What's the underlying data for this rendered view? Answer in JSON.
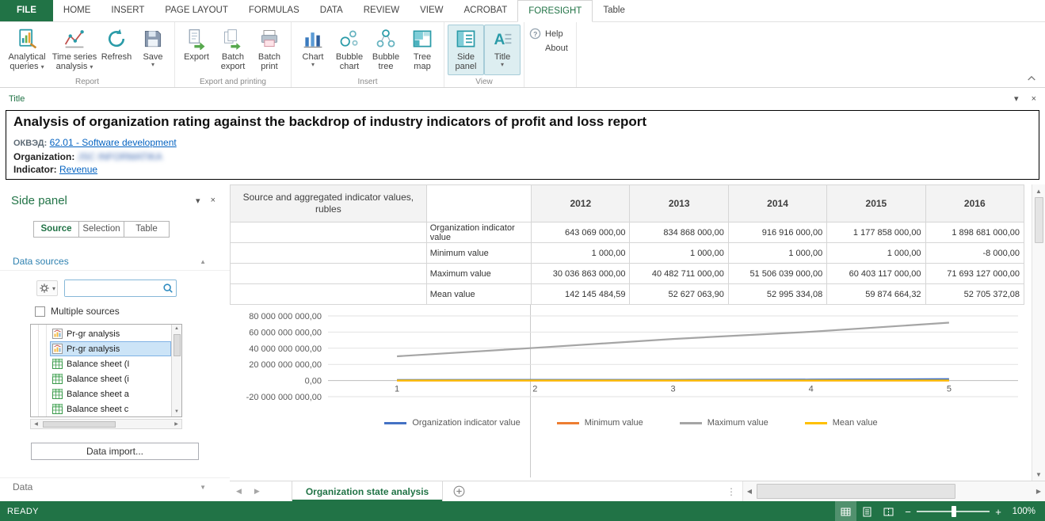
{
  "app": {
    "status_ready": "READY",
    "zoom_level": "100%"
  },
  "ribbon": {
    "tabs": [
      "FILE",
      "HOME",
      "INSERT",
      "PAGE LAYOUT",
      "FORMULAS",
      "DATA",
      "REVIEW",
      "VIEW",
      "ACROBAT",
      "FORESIGHT",
      "Table"
    ],
    "active_tab": "FORESIGHT",
    "groups": {
      "report": {
        "label": "Report",
        "analytical_queries": "Analytical queries",
        "time_series": "Time series analysis",
        "refresh": "Refresh",
        "save": "Save"
      },
      "export_printing": {
        "label": "Export and printing",
        "export": "Export",
        "batch_export": "Batch export",
        "batch_print": "Batch print"
      },
      "insert": {
        "label": "Insert",
        "chart": "Chart",
        "bubble_chart": "Bubble chart",
        "bubble_tree": "Bubble tree",
        "tree_map": "Tree map"
      },
      "view": {
        "label": "View",
        "side_panel": "Side panel",
        "title": "Title"
      },
      "help": {
        "help": "Help",
        "about": "About"
      }
    }
  },
  "title_panel": {
    "label": "Title",
    "heading": "Analysis of organization rating against the backdrop of industry indicators of profit and loss report",
    "okved_label": "ОКВЭД:",
    "okved_value": "62.01 -  Software development",
    "organization_label": "Organization:",
    "organization_value": "JSC INFORMATIKA",
    "indicator_label": "Indicator:",
    "indicator_value": "Revenue"
  },
  "side_panel": {
    "title": "Side panel",
    "tabs": [
      "Source",
      "Selection",
      "Table"
    ],
    "active_tab": "Source",
    "data_sources_label": "Data sources",
    "multiple_sources_label": "Multiple sources",
    "source_items": [
      {
        "label": "Pr-gr analysis",
        "selected": false,
        "icon": "chart"
      },
      {
        "label": "Pr-gr analysis",
        "selected": true,
        "icon": "chart"
      },
      {
        "label": "Balance sheet (I",
        "selected": false,
        "icon": "table"
      },
      {
        "label": "Balance sheet (i",
        "selected": false,
        "icon": "table"
      },
      {
        "label": "Balance sheet a",
        "selected": false,
        "icon": "table"
      },
      {
        "label": "Balance sheet c",
        "selected": false,
        "icon": "table"
      }
    ],
    "data_import_label": "Data import...",
    "data_label": "Data"
  },
  "table": {
    "corner_header": "Source and aggregated indicator values, rubles",
    "years": [
      "2012",
      "2013",
      "2014",
      "2015",
      "2016"
    ],
    "rows": [
      {
        "label": "Organization indicator value",
        "values": [
          "643 069 000,00",
          "834 868 000,00",
          "916 916 000,00",
          "1 177 858 000,00",
          "1 898 681 000,00"
        ]
      },
      {
        "label": "Minimum value",
        "values": [
          "1 000,00",
          "1 000,00",
          "1 000,00",
          "1 000,00",
          "-8 000,00"
        ]
      },
      {
        "label": "Maximum value",
        "values": [
          "30 036 863 000,00",
          "40 482 711 000,00",
          "51 506 039 000,00",
          "60 403 117 000,00",
          "71 693 127 000,00"
        ]
      },
      {
        "label": "Mean value",
        "values": [
          "142 145 484,59",
          "52 627 063,90",
          "52 995 334,08",
          "59 874 664,32",
          "52 705 372,08"
        ]
      }
    ]
  },
  "chart_data": {
    "type": "line",
    "x": [
      1,
      2,
      3,
      4,
      5
    ],
    "x_labels": [
      "1",
      "2",
      "3",
      "4",
      "5"
    ],
    "series": [
      {
        "name": "Organization indicator value",
        "color": "#4472c4",
        "values": [
          643069000,
          834868000,
          916916000,
          1177858000,
          1898681000
        ]
      },
      {
        "name": "Minimum value",
        "color": "#ed7d31",
        "values": [
          1000,
          1000,
          1000,
          1000,
          -8000
        ]
      },
      {
        "name": "Maximum value",
        "color": "#a5a5a5",
        "values": [
          30036863000,
          40482711000,
          51506039000,
          60403117000,
          71693127000
        ]
      },
      {
        "name": "Mean value",
        "color": "#ffc000",
        "values": [
          142145484.59,
          52627063.9,
          52995334.08,
          59874664.32,
          52705372.08
        ]
      }
    ],
    "y_ticks": [
      {
        "value": 80000000000,
        "label": "80 000 000 000,00"
      },
      {
        "value": 60000000000,
        "label": "60 000 000 000,00"
      },
      {
        "value": 40000000000,
        "label": "40 000 000 000,00"
      },
      {
        "value": 20000000000,
        "label": "20 000 000 000,00"
      },
      {
        "value": 0,
        "label": "0,00"
      },
      {
        "value": -20000000000,
        "label": "-20 000 000 000,00"
      }
    ],
    "ylim": [
      -20000000000,
      80000000000
    ],
    "grid": true,
    "legend_position": "bottom"
  },
  "sheet_bar": {
    "active_sheet": "Organization state analysis"
  }
}
